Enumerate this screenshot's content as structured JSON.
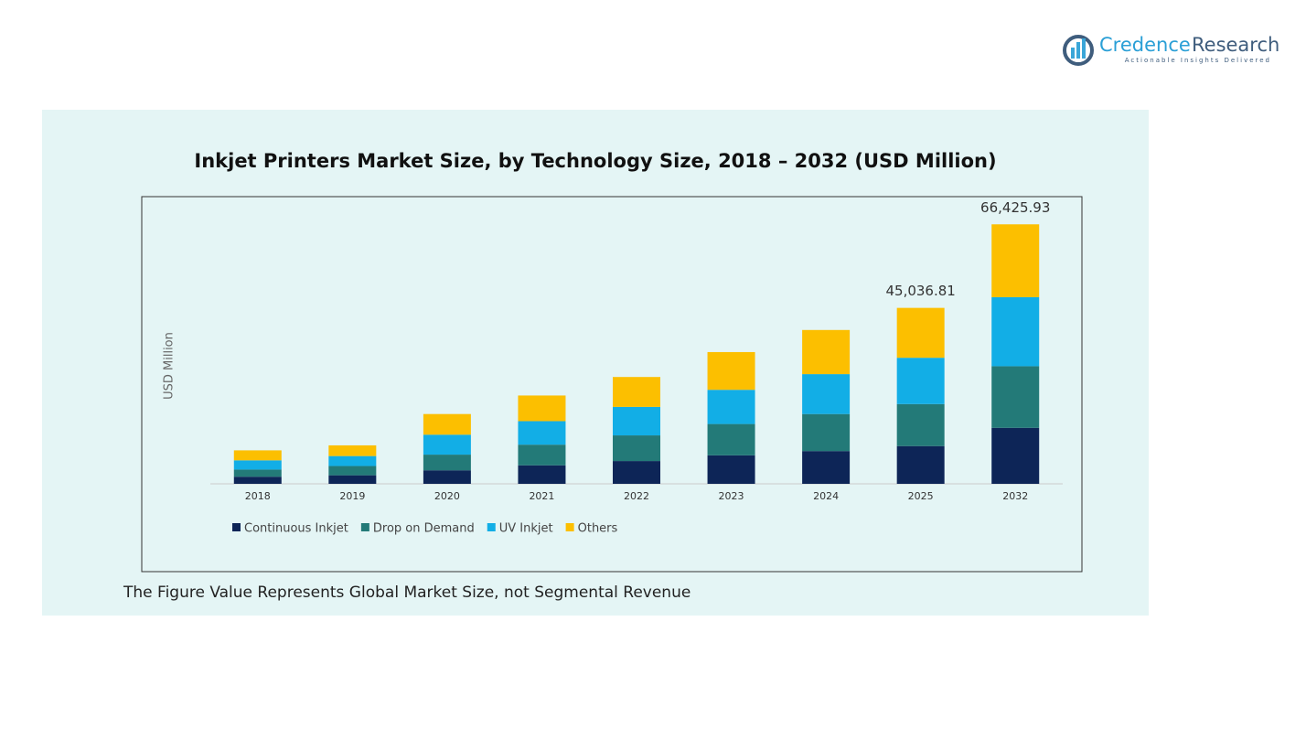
{
  "brand": {
    "name_part1": "Credence",
    "name_part2": "Research",
    "tagline": "Actionable Insights Delivered"
  },
  "chart_data": {
    "type": "stacked_bar",
    "title": "Inkjet Printers Market Size, by Technology Size, 2018 – 2032 (USD Million)",
    "y_label": "USD Million",
    "categories": [
      "2018",
      "2019",
      "2020",
      "2021",
      "2022",
      "2023",
      "2024",
      "2025",
      "2032"
    ],
    "series": [
      {
        "name": "Continuous Inkjet",
        "color": "#0d2557",
        "values": [
          1823,
          2188,
          3464,
          4740,
          5834,
          7292,
          8386,
          9662,
          14334
        ]
      },
      {
        "name": "Drop on Demand",
        "color": "#237a78",
        "values": [
          1823,
          2370,
          4011,
          5287,
          6563,
          8021,
          9480,
          10756,
          15767
        ]
      },
      {
        "name": "UV Inkjet",
        "color": "#12aee6",
        "values": [
          2370,
          2552,
          5104,
          6016,
          7292,
          8750,
          10209,
          11850,
          17679
        ]
      },
      {
        "name": "Others",
        "color": "#fcbf00",
        "values": [
          2552,
          2735,
          5287,
          6563,
          7657,
          9662,
          11303,
          12769,
          18646
        ]
      }
    ],
    "values": [
      null,
      null,
      null,
      null,
      null,
      null,
      null,
      45036.81,
      66425.93
    ],
    "value_labels": [
      null,
      null,
      null,
      null,
      null,
      null,
      null,
      "45,036.81",
      "66,425.93"
    ],
    "ylim": [
      0,
      70000
    ],
    "legend": "bottom-left",
    "note": "The Figure Value Represents Global Market Size, not Segmental Revenue"
  }
}
